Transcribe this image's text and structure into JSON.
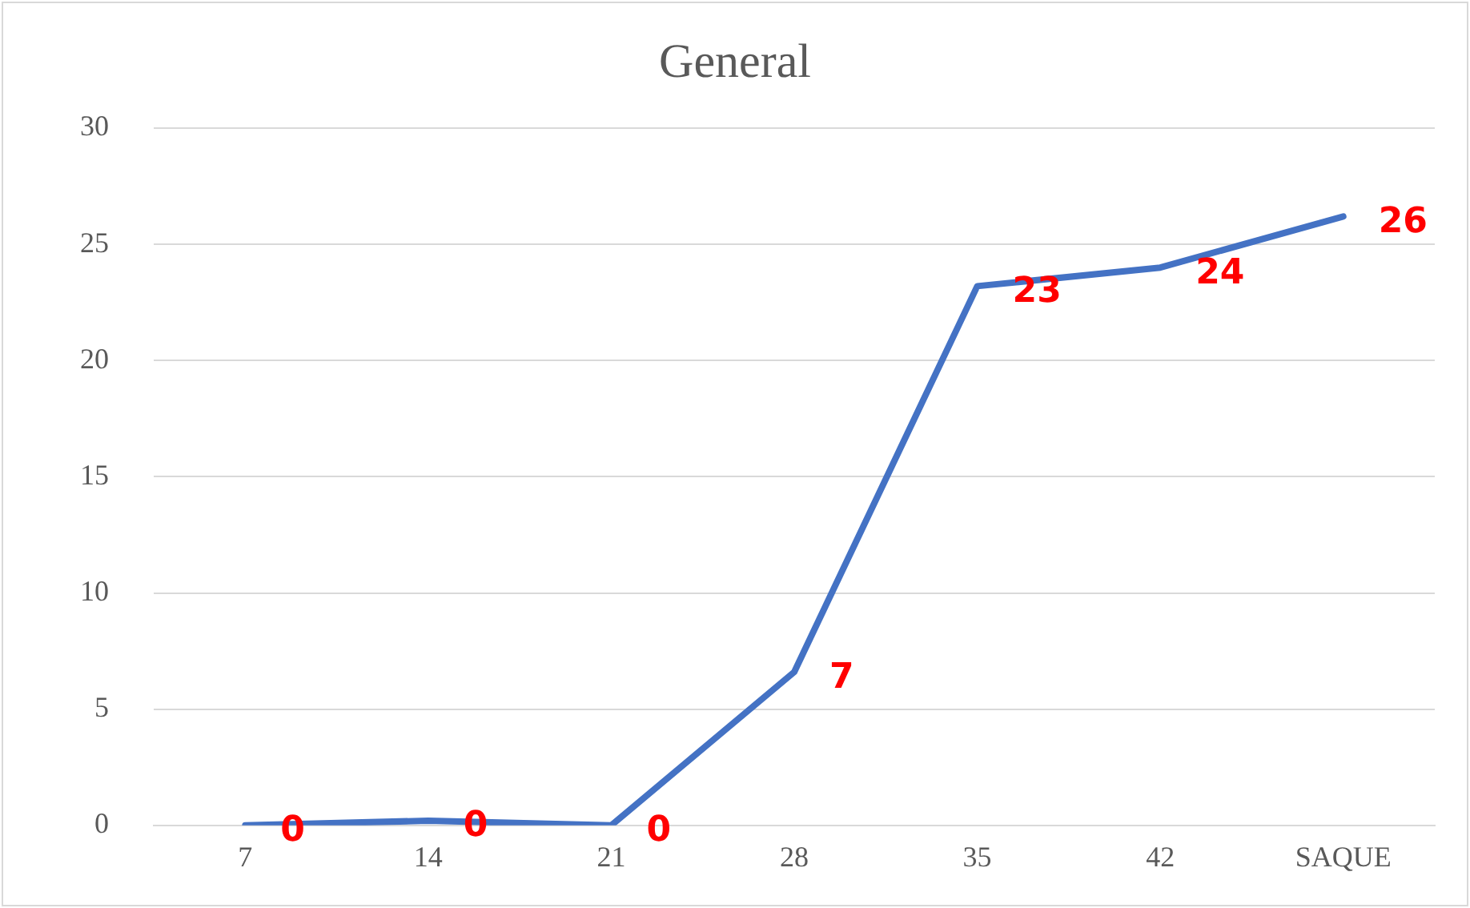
{
  "chart_data": {
    "type": "line",
    "title": "General",
    "categories": [
      "7",
      "14",
      "21",
      "28",
      "35",
      "42",
      "SAQUE"
    ],
    "series": [
      {
        "color": "#4472c4",
        "values": [
          0,
          0.2,
          0,
          6.6,
          23.2,
          24,
          26.2
        ],
        "value_labels": [
          "0",
          "0",
          "0",
          "7",
          "23",
          "24",
          "26"
        ]
      }
    ],
    "ylim": [
      0,
      30
    ],
    "yticks": [
      0,
      5,
      10,
      15,
      20,
      25,
      30
    ],
    "grid": "y",
    "legend": false,
    "marker": "none",
    "line_style": "solid"
  }
}
